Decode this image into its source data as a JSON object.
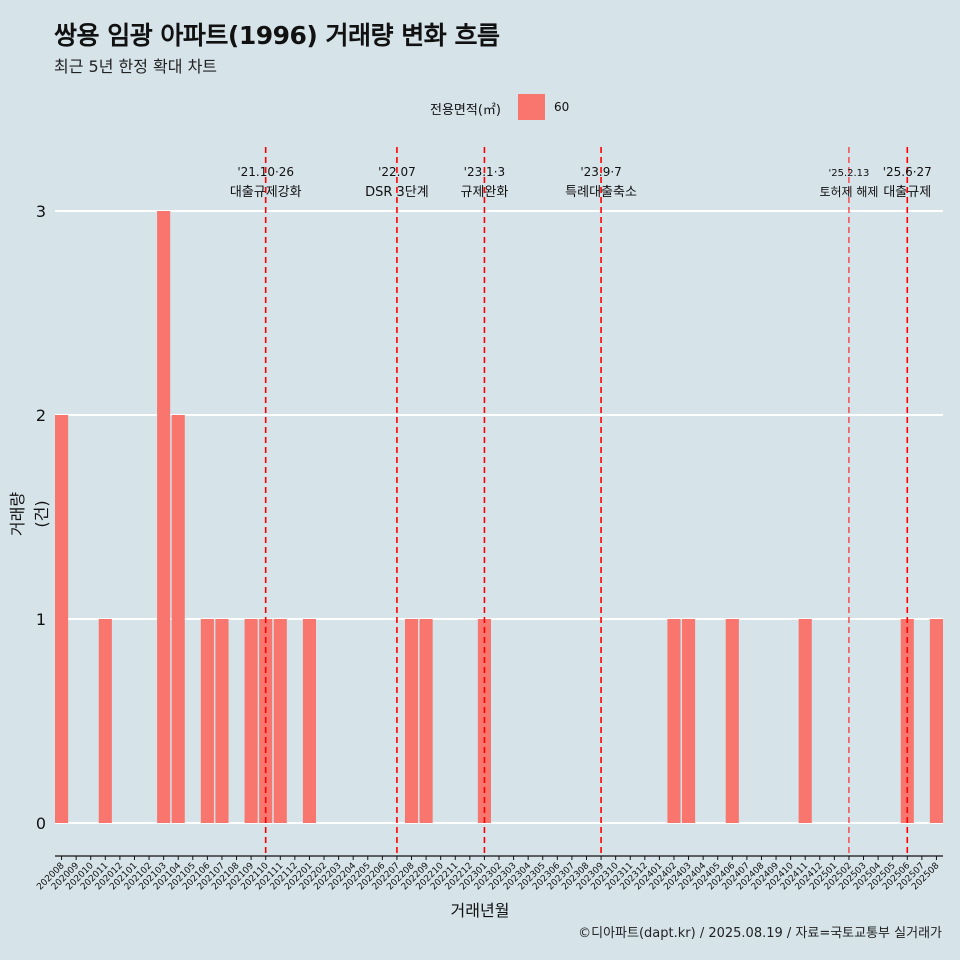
{
  "title": "쌍용 임광 아파트(1996) 거래량 변화 흐름",
  "subtitle": "최근 5년 한정 확대 차트",
  "caption": "©디아파트(dapt.kr) / 2025.08.19 / 자료=국토교통부 실거래가",
  "legend": {
    "title": "전용면적(㎡)",
    "label": "60",
    "color": "#f8766d"
  },
  "chart_data": {
    "type": "bar",
    "xlabel": "거래년월",
    "ylabel": "거래량(건)",
    "ylim": [
      0,
      3
    ],
    "yticks": [
      0,
      1,
      2,
      3
    ],
    "grid": true,
    "bar_color": "#f8766d",
    "categories": [
      "202008",
      "202009",
      "202010",
      "202011",
      "202012",
      "202101",
      "202102",
      "202103",
      "202104",
      "202105",
      "202106",
      "202107",
      "202108",
      "202109",
      "202110",
      "202111",
      "202112",
      "202201",
      "202202",
      "202203",
      "202204",
      "202205",
      "202206",
      "202207",
      "202208",
      "202209",
      "202210",
      "202211",
      "202212",
      "202301",
      "202302",
      "202303",
      "202304",
      "202305",
      "202306",
      "202307",
      "202308",
      "202309",
      "202310",
      "202311",
      "202312",
      "202401",
      "202402",
      "202403",
      "202404",
      "202405",
      "202406",
      "202407",
      "202408",
      "202409",
      "202410",
      "202411",
      "202412",
      "202501",
      "202502",
      "202503",
      "202504",
      "202505",
      "202506",
      "202507",
      "202508"
    ],
    "values": [
      2,
      0,
      0,
      1,
      0,
      0,
      0,
      3,
      2,
      0,
      1,
      1,
      0,
      1,
      1,
      1,
      0,
      1,
      0,
      0,
      0,
      0,
      0,
      0,
      1,
      1,
      0,
      0,
      0,
      1,
      0,
      0,
      0,
      0,
      0,
      0,
      0,
      0,
      0,
      0,
      0,
      0,
      1,
      1,
      0,
      0,
      1,
      0,
      0,
      0,
      0,
      1,
      0,
      0,
      0,
      0,
      0,
      0,
      1,
      0,
      1
    ],
    "annotations": [
      {
        "x": "202110",
        "line1": "'21.10·26",
        "line2": "대출규제강화",
        "small": false
      },
      {
        "x": "202207",
        "line1": "'22.07",
        "line2": "DSR 3단계",
        "small": false
      },
      {
        "x": "202301",
        "line1": "'23.1·3",
        "line2": "규제완화",
        "small": false
      },
      {
        "x": "202309",
        "line1": "'23.9·7",
        "line2": "특례대출축소",
        "small": false
      },
      {
        "x": "202502",
        "line1": "'25.2.13",
        "line2": "토허제 해제",
        "small": true
      },
      {
        "x": "202506",
        "line1": "'25.6·27",
        "line2": "대출규제",
        "small": false
      }
    ]
  }
}
